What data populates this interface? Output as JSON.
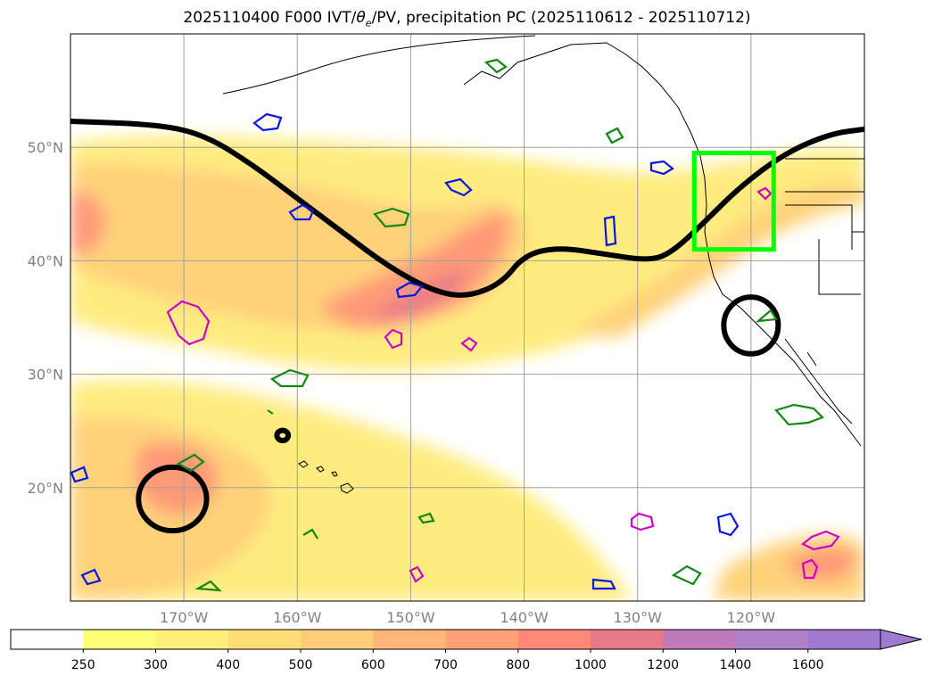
{
  "title_parts": {
    "prefix": "2025110400 F000 IVT/",
    "theta": "θ",
    "sub": "e",
    "suffix": "/PV, precipitation PC (2025110612 - 2025110712)"
  },
  "chart_data": {
    "type": "map",
    "projection": "plate-carree",
    "lon_range": [
      -180,
      -110
    ],
    "lat_range": [
      10,
      60
    ],
    "grid": true,
    "xticks": [
      {
        "lon": -170,
        "label": "170°W"
      },
      {
        "lon": -160,
        "label": "160°W"
      },
      {
        "lon": -150,
        "label": "150°W"
      },
      {
        "lon": -140,
        "label": "140°W"
      },
      {
        "lon": -130,
        "label": "130°W"
      },
      {
        "lon": -120,
        "label": "120°W"
      }
    ],
    "yticks": [
      {
        "lat": 20,
        "label": "20°N"
      },
      {
        "lat": 30,
        "label": "30°N"
      },
      {
        "lat": 40,
        "label": "40°N"
      },
      {
        "lat": 50,
        "label": "50°N"
      }
    ],
    "colorbar": {
      "levels": [
        "250",
        "300",
        "400",
        "500",
        "600",
        "700",
        "800",
        "1000",
        "1200",
        "1400",
        "1600"
      ],
      "colors": [
        "#ffffff",
        "#ffff77",
        "#ffee77",
        "#ffdd77",
        "#ffcc77",
        "#ffb677",
        "#ffa077",
        "#ff8877",
        "#e87a88",
        "#c07ab8",
        "#b080c8",
        "#a07ad0"
      ],
      "extend": "max"
    },
    "ivt_region_color": "#ffcc77",
    "highlight_box": {
      "lon": [
        -125,
        -118
      ],
      "lat": [
        41,
        49.5
      ],
      "color": "#00ff00"
    },
    "pv_contour": [
      [
        -180,
        52.3
      ],
      [
        -172,
        52.0
      ],
      [
        -168,
        51.0
      ],
      [
        -164,
        48.5
      ],
      [
        -160,
        45.5
      ],
      [
        -156,
        42.5
      ],
      [
        -152,
        39.5
      ],
      [
        -148,
        37.3
      ],
      [
        -145,
        36.8
      ],
      [
        -142,
        38.0
      ],
      [
        -140,
        40.5
      ],
      [
        -137,
        41.2
      ],
      [
        -133,
        40.6
      ],
      [
        -129,
        40.0
      ],
      [
        -127,
        40.7
      ],
      [
        -124,
        43.5
      ],
      [
        -121,
        46.5
      ],
      [
        -117,
        49.5
      ],
      [
        -113,
        51.2
      ],
      [
        -110,
        51.6
      ]
    ],
    "pv_closed_contours": [
      {
        "center": [
          -171,
          19.0
        ],
        "r": [
          3.0,
          2.8
        ]
      },
      {
        "center": [
          -120,
          34.3
        ],
        "r": [
          2.4,
          2.5
        ]
      },
      {
        "center": [
          -161.3,
          24.6
        ],
        "r": [
          0.5,
          0.45
        ]
      }
    ]
  }
}
